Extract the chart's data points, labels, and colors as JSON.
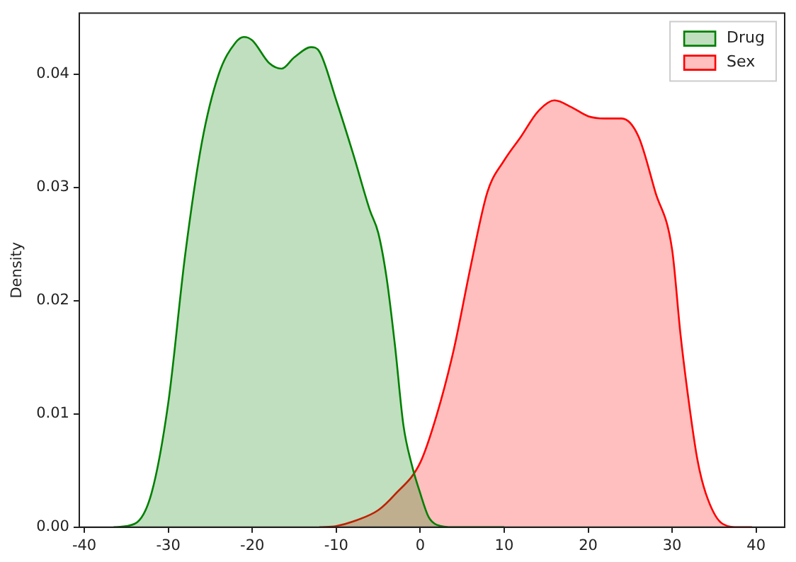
{
  "chart_data": {
    "type": "area",
    "ylabel": "Density",
    "xlim": [
      -40.6,
      43.4
    ],
    "ylim": [
      0,
      0.0454
    ],
    "xticks": [
      -40,
      -30,
      -20,
      -10,
      0,
      10,
      20,
      30,
      40
    ],
    "yticks": [
      {
        "value": 0,
        "label": "0.00"
      },
      0.01,
      0.02,
      0.03,
      0.04
    ],
    "grid": false,
    "legend": "top right",
    "marker": "none",
    "line_style": "solid",
    "series": [
      {
        "name": "Drug",
        "color": "#008000",
        "x": [
          -36.5,
          -34,
          -32,
          -30,
          -28,
          -26,
          -24,
          -22,
          -21,
          -20,
          -18,
          -16.5,
          -15,
          -13,
          -12,
          -10,
          -8,
          -6,
          -5,
          -4,
          -3,
          -2,
          -1,
          0,
          1,
          2,
          4,
          10
        ],
        "values": [
          0,
          0.0003,
          0.003,
          0.011,
          0.024,
          0.034,
          0.04,
          0.0428,
          0.0433,
          0.043,
          0.041,
          0.0405,
          0.0415,
          0.0424,
          0.042,
          0.0377,
          0.033,
          0.028,
          0.026,
          0.022,
          0.016,
          0.009,
          0.0055,
          0.003,
          0.0009,
          0.0002,
          0,
          0
        ]
      },
      {
        "name": "Sex",
        "color": "#ff0000",
        "x": [
          -12,
          -10,
          -8,
          -5,
          -3,
          0,
          2,
          4,
          6,
          8,
          10,
          12,
          14,
          16,
          18,
          20,
          22,
          24,
          26,
          28,
          30,
          31,
          32,
          33,
          34,
          36,
          38,
          39.5
        ],
        "values": [
          0,
          0.0001,
          0.0005,
          0.0015,
          0.0029,
          0.0057,
          0.01,
          0.0157,
          0.023,
          0.0296,
          0.0324,
          0.0345,
          0.0367,
          0.0377,
          0.0371,
          0.0363,
          0.0361,
          0.0361,
          0.0345,
          0.0296,
          0.0245,
          0.017,
          0.011,
          0.006,
          0.003,
          0.0003,
          0,
          0
        ]
      }
    ]
  }
}
